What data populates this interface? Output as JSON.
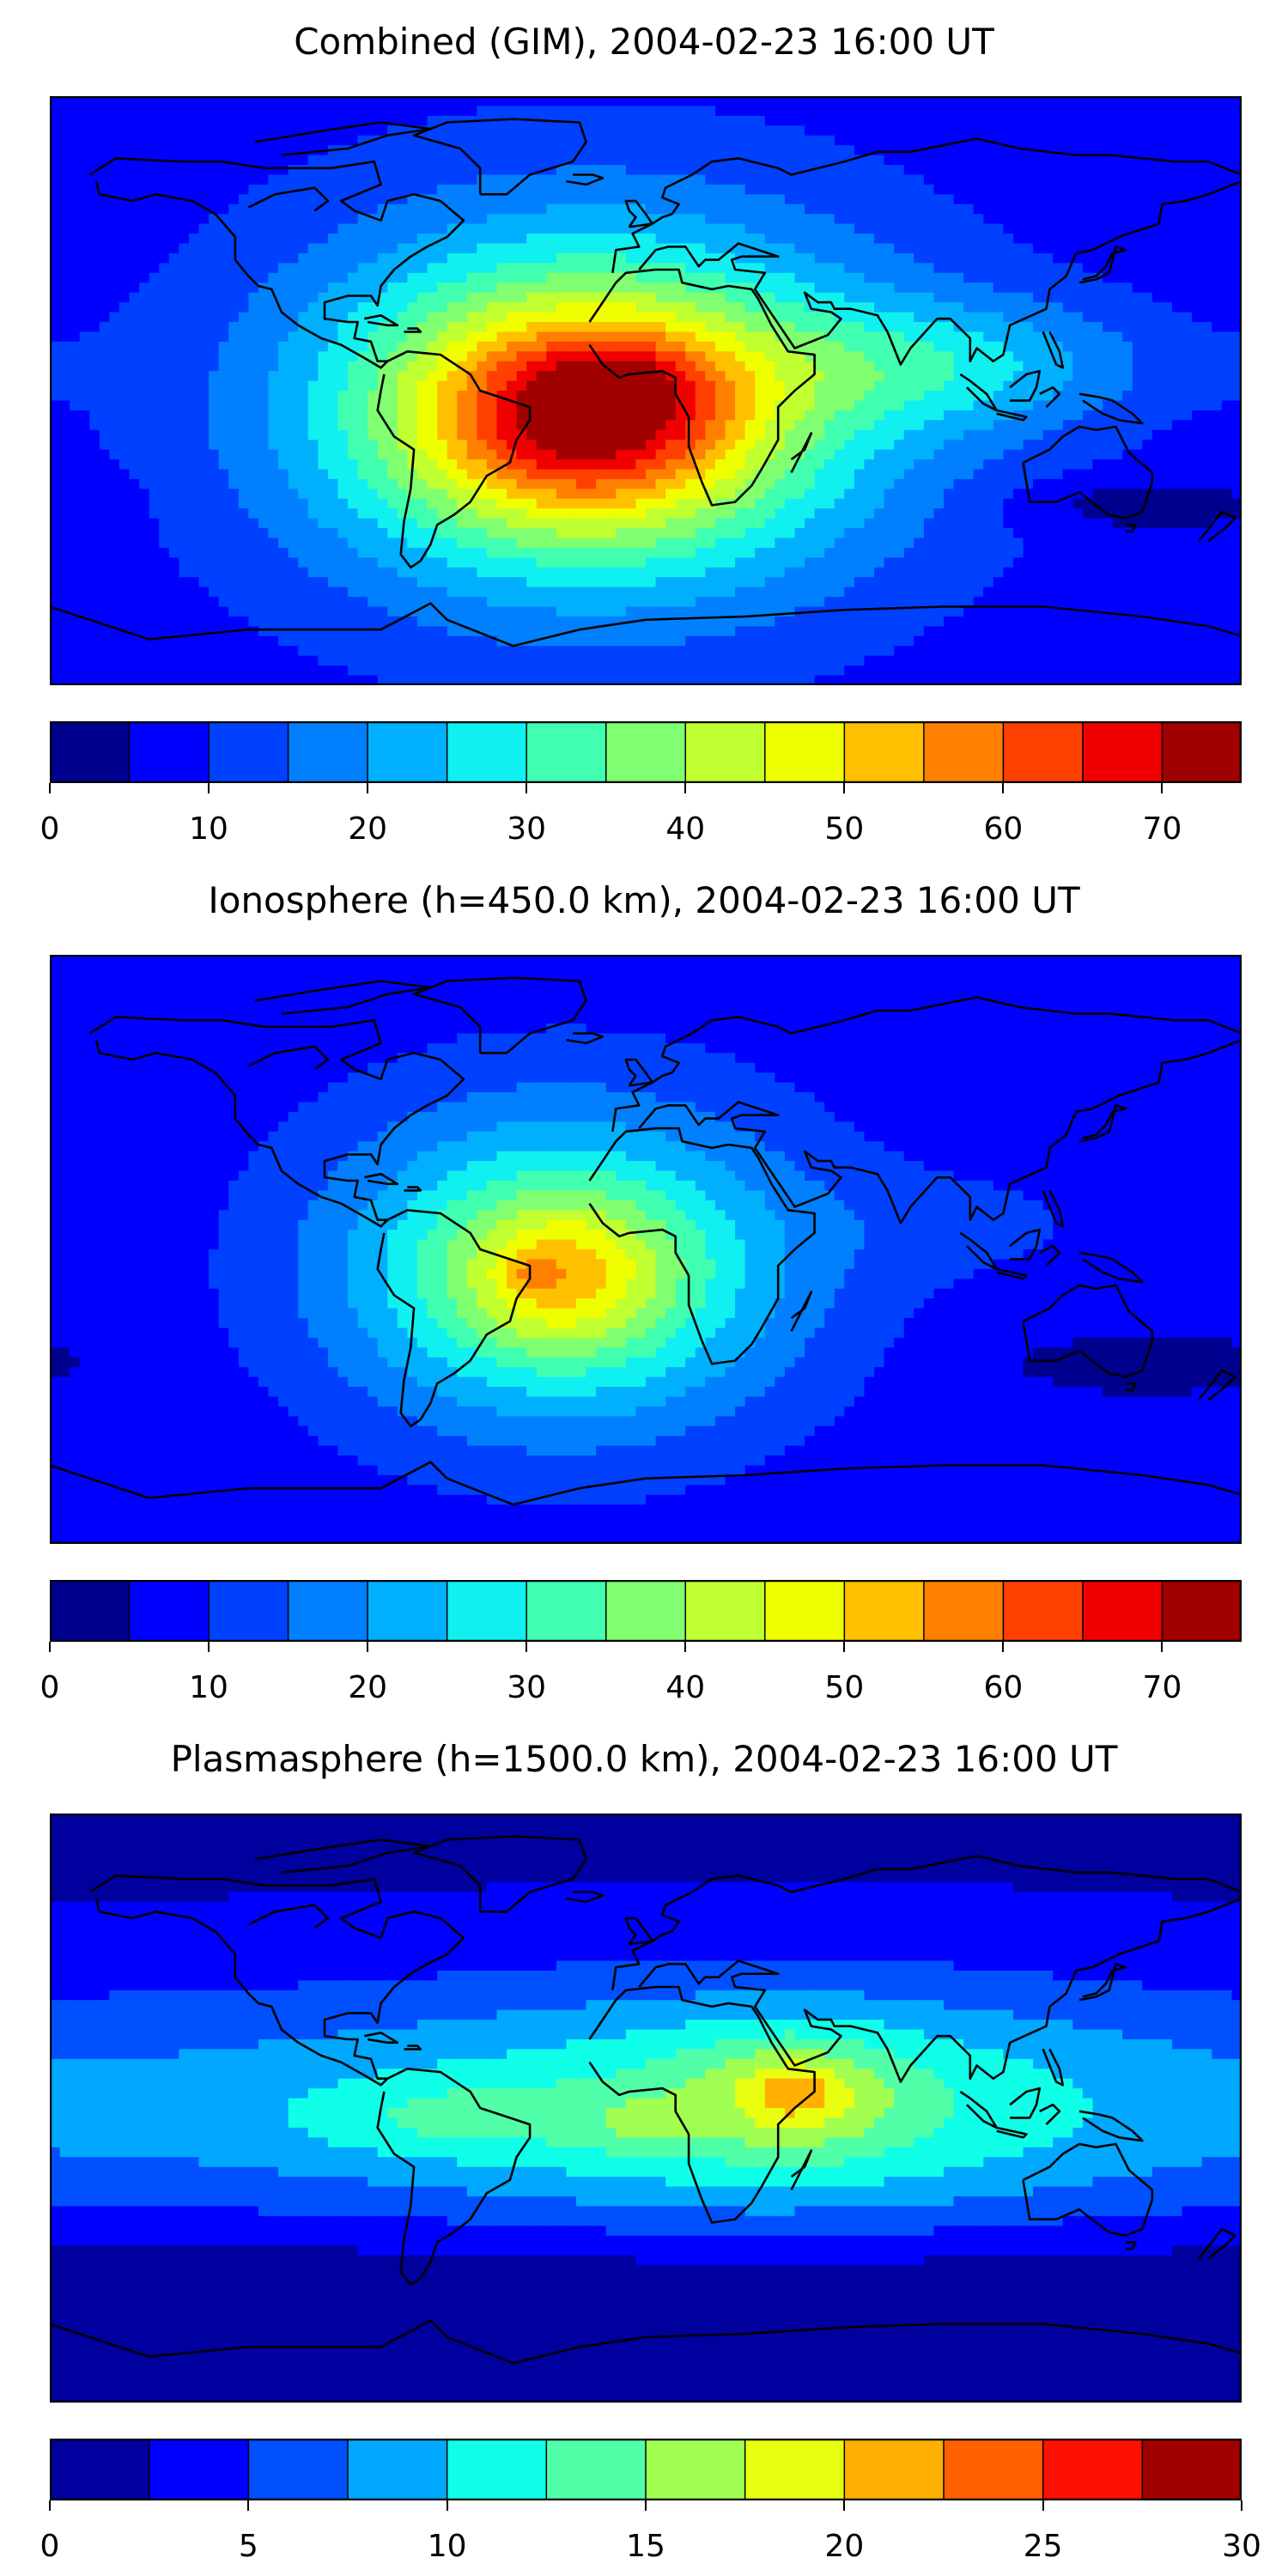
{
  "colors": {
    "jet15": [
      "#00008f",
      "#0000ff",
      "#0040ff",
      "#0080ff",
      "#00b0ff",
      "#10f0f0",
      "#40ffb0",
      "#80ff70",
      "#c0ff30",
      "#f0ff00",
      "#ffc000",
      "#ff8000",
      "#ff4000",
      "#f00000",
      "#a00000"
    ],
    "jet12": [
      "#00009f",
      "#0000ff",
      "#0050ff",
      "#00a8ff",
      "#10ffe8",
      "#50ffa8",
      "#a0ff50",
      "#e8ff10",
      "#ffb000",
      "#ff6000",
      "#ff1000",
      "#a00000"
    ]
  },
  "chart_data": [
    {
      "type": "heatmap",
      "title": "Combined (GIM), 2004-02-23 16:00 UT",
      "colorbar": {
        "ticks": [
          "0",
          "10",
          "20",
          "30",
          "40",
          "50",
          "60",
          "70"
        ],
        "tick_values": [
          0,
          10,
          20,
          30,
          40,
          50,
          60,
          70
        ],
        "range": [
          0,
          75
        ],
        "levels": 15,
        "palette": "jet15"
      },
      "background_value": 7,
      "features": [
        {
          "lon": -15,
          "lat": -5,
          "rlon": 95,
          "rlat": 60,
          "value": 33
        },
        {
          "lon": -20,
          "lat": -8,
          "rlon": 60,
          "rlat": 38,
          "value": 23
        },
        {
          "lon": -18,
          "lat": -8,
          "rlon": 40,
          "rlat": 25,
          "value": 15
        },
        {
          "lon": -5,
          "lat": 2,
          "rlon": 25,
          "rlat": 13,
          "value": 8
        },
        {
          "lon": 95,
          "lat": 8,
          "rlon": 60,
          "rlat": 20,
          "value": 14
        },
        {
          "lon": 150,
          "lat": -35,
          "rlon": 40,
          "rlat": 8,
          "value": -6
        }
      ]
    },
    {
      "type": "heatmap",
      "title": "Ionosphere  (h=450.0 km), 2004-02-23 16:00 UT",
      "colorbar": {
        "ticks": [
          "0",
          "10",
          "20",
          "30",
          "40",
          "50",
          "60",
          "70"
        ],
        "tick_values": [
          0,
          10,
          20,
          30,
          40,
          50,
          60,
          70
        ],
        "range": [
          0,
          75
        ],
        "levels": 15,
        "palette": "jet15"
      },
      "background_value": 6,
      "features": [
        {
          "lon": -25,
          "lat": -5,
          "rlon": 80,
          "rlat": 55,
          "value": 22
        },
        {
          "lon": -25,
          "lat": -8,
          "rlon": 50,
          "rlat": 35,
          "value": 16
        },
        {
          "lon": -25,
          "lat": -8,
          "rlon": 25,
          "rlat": 20,
          "value": 10
        },
        {
          "lon": -35,
          "lat": -8,
          "rlon": 8,
          "rlat": 6,
          "value": 6
        },
        {
          "lon": 100,
          "lat": 8,
          "rlon": 55,
          "rlat": 18,
          "value": 4
        },
        {
          "lon": 150,
          "lat": -35,
          "rlon": 40,
          "rlat": 8,
          "value": -4
        }
      ]
    },
    {
      "type": "heatmap",
      "title": "Plasmasphere (h=1500.0 km), 2004-02-23 16:00 UT",
      "colorbar": {
        "ticks": [
          "0",
          "5",
          "10",
          "15",
          "20",
          "25",
          "30"
        ],
        "tick_values": [
          0,
          5,
          10,
          15,
          20,
          25,
          30
        ],
        "range": [
          0,
          30
        ],
        "levels": 12,
        "palette": "jet12"
      },
      "background_value": 2,
      "features": [
        {
          "lon": 0,
          "lat": 0,
          "rlon": 360,
          "rlat": 40,
          "value": 7.5
        },
        {
          "lon": 40,
          "lat": 0,
          "rlon": 90,
          "rlat": 38,
          "value": 4.5
        },
        {
          "lon": 45,
          "lat": 5,
          "rlon": 30,
          "rlat": 18,
          "value": 5
        },
        {
          "lon": 45,
          "lat": 5,
          "rlon": 12,
          "rlat": 8,
          "value": 3.5
        },
        {
          "lon": -60,
          "lat": -3,
          "rlon": 45,
          "rlat": 12,
          "value": 3
        },
        {
          "lon": 0,
          "lat": -5,
          "rlon": 15,
          "rlat": 8,
          "value": 3
        },
        {
          "lon": 0,
          "lat": -60,
          "rlon": 360,
          "rlat": 25,
          "value": -3
        },
        {
          "lon": 90,
          "lat": -60,
          "rlon": 40,
          "rlat": 6,
          "value": -2
        }
      ]
    }
  ]
}
